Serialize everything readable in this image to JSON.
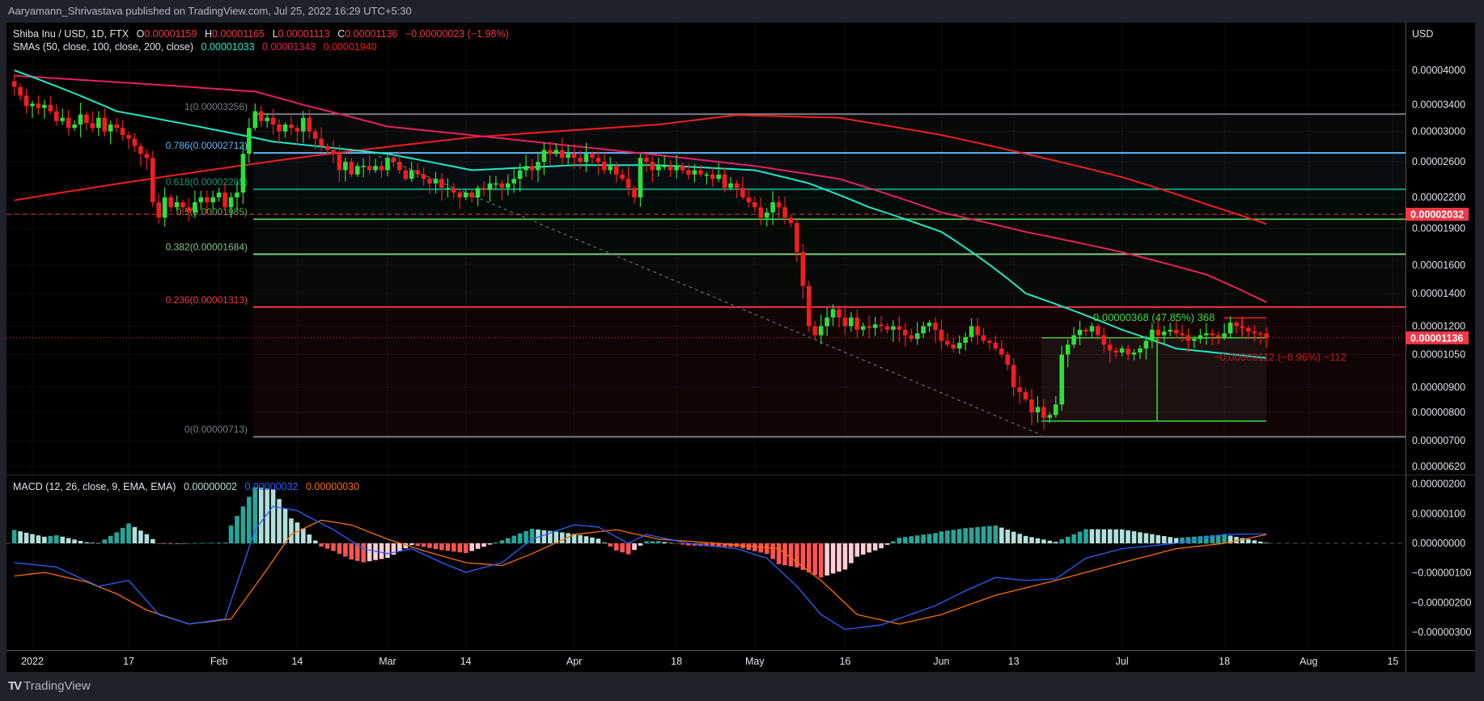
{
  "publish_line": "Aaryamann_Shrivastava published on TradingView.com, Jul 25, 2022 16:29 UTC+5:30",
  "legend": {
    "symbol": "Shiba Inu / USD, 1D, FTX",
    "o_label": "O",
    "o": "0.00001159",
    "h_label": "H",
    "h": "0.00001165",
    "l_label": "L",
    "l": "0.00001113",
    "c_label": "C",
    "c": "0.00001136",
    "change": "−0.00000023 (−1.98%)",
    "sma_label": "SMAs (50, close, 100, close, 200, close)",
    "sma50": "0.00001033",
    "sma100": "0.00001343",
    "sma200": "0.00001940",
    "macd_label": "MACD (12, 26, close, 9, EMA, EMA)",
    "macd_hist": "0.00000002",
    "macd_line": "0.00000032",
    "macd_signal": "0.00000030"
  },
  "logo_text": "TradingView",
  "colors": {
    "up": "#2ee03a",
    "down": "#f21d1d",
    "sma50": "#1de9c6",
    "sma100": "#e91e63",
    "sma200": "#f21d1d",
    "macd": "#2962ff",
    "signal": "#ff6d00",
    "hist_up": "#26a69a",
    "hist_up_fall": "#b2dfdb",
    "hist_dn": "#ff5252",
    "hist_dn_rise": "#ffcdd2",
    "price_label": "#f23645"
  },
  "chart_data": {
    "type": "candlestick",
    "title": "Shiba Inu / USD, 1D, FTX",
    "price_unit": "1e-8 USD",
    "y_scale": "log",
    "start_date": "2021-12-29",
    "closes": [
      3700,
      3550,
      3380,
      3420,
      3350,
      3400,
      3300,
      3150,
      3200,
      3050,
      3100,
      3250,
      3120,
      3050,
      3200,
      3000,
      3100,
      3050,
      2950,
      2900,
      2800,
      2700,
      2650,
      2150,
      2000,
      2200,
      2100,
      2150,
      2100,
      2050,
      2150,
      2200,
      2150,
      2200,
      2250,
      2100,
      2200,
      2250,
      2700,
      3050,
      3300,
      3150,
      3200,
      3100,
      3000,
      3100,
      3050,
      3000,
      3200,
      3000,
      2900,
      2800,
      2750,
      2700,
      2500,
      2600,
      2450,
      2550,
      2550,
      2500,
      2550,
      2500,
      2650,
      2600,
      2500,
      2400,
      2500,
      2450,
      2400,
      2350,
      2400,
      2300,
      2300,
      2250,
      2200,
      2250,
      2200,
      2300,
      2280,
      2350,
      2350,
      2300,
      2350,
      2400,
      2500,
      2550,
      2500,
      2600,
      2750,
      2700,
      2750,
      2650,
      2700,
      2650,
      2600,
      2700,
      2650,
      2600,
      2500,
      2550,
      2450,
      2400,
      2300,
      2200,
      2650,
      2600,
      2500,
      2550,
      2550,
      2500,
      2550,
      2500,
      2450,
      2500,
      2450,
      2450,
      2400,
      2450,
      2300,
      2350,
      2300,
      2200,
      2150,
      2100,
      2000,
      2050,
      2150,
      2100,
      2000,
      1950,
      1700,
      1450,
      1200,
      1150,
      1200,
      1250,
      1300,
      1250,
      1200,
      1250,
      1180,
      1200,
      1190,
      1210,
      1200,
      1180,
      1200,
      1180,
      1150,
      1130,
      1160,
      1200,
      1220,
      1180,
      1120,
      1100,
      1080,
      1110,
      1140,
      1200,
      1150,
      1120,
      1110,
      1080,
      1050,
      1000,
      900,
      880,
      850,
      800,
      820,
      780,
      790,
      830,
      1050,
      1100,
      1150,
      1180,
      1170,
      1200,
      1150,
      1100,
      1070,
      1060,
      1080,
      1050,
      1060,
      1080,
      1120,
      1180,
      1150,
      1170,
      1180,
      1160,
      1150,
      1120,
      1130,
      1150,
      1160,
      1150,
      1140,
      1160,
      1220,
      1200,
      1190,
      1170,
      1160,
      1159,
      1136
    ],
    "sma50": [
      [
        "12-29",
        4000
      ],
      [
        "01-15",
        3300
      ],
      [
        "02-10",
        2860
      ],
      [
        "03-01",
        2700
      ],
      [
        "03-15",
        2500
      ],
      [
        "04-01",
        2560
      ],
      [
        "04-15",
        2560
      ],
      [
        "05-01",
        2500
      ],
      [
        "05-10",
        2350
      ],
      [
        "05-20",
        2100
      ],
      [
        "06-01",
        1870
      ],
      [
        "06-15",
        1400
      ],
      [
        "07-01",
        1180
      ],
      [
        "07-10",
        1080
      ],
      [
        "07-25",
        1033
      ]
    ],
    "sma100": [
      [
        "12-29",
        3900
      ],
      [
        "01-20",
        3750
      ],
      [
        "02-07",
        3620
      ],
      [
        "02-15",
        3400
      ],
      [
        "03-01",
        3070
      ],
      [
        "04-01",
        2800
      ],
      [
        "05-01",
        2550
      ],
      [
        "05-15",
        2400
      ],
      [
        "06-01",
        2050
      ],
      [
        "06-15",
        1870
      ],
      [
        "07-01",
        1700
      ],
      [
        "07-15",
        1530
      ],
      [
        "07-25",
        1343
      ]
    ],
    "sma200": [
      [
        "12-29",
        2170
      ],
      [
        "02-15",
        2660
      ],
      [
        "03-15",
        2920
      ],
      [
        "04-15",
        3100
      ],
      [
        "04-28",
        3240
      ],
      [
        "05-15",
        3200
      ],
      [
        "06-01",
        2950
      ],
      [
        "06-15",
        2700
      ],
      [
        "07-01",
        2420
      ],
      [
        "07-15",
        2130
      ],
      [
        "07-25",
        1940
      ]
    ],
    "macd_unit": "1e-8",
    "macd": [
      [
        "12-29",
        -65
      ],
      [
        "01-05",
        -80
      ],
      [
        "01-12",
        -145
      ],
      [
        "01-17",
        -125
      ],
      [
        "01-22",
        -240
      ],
      [
        "01-27",
        -272
      ],
      [
        "02-02",
        -255
      ],
      [
        "02-07",
        46
      ],
      [
        "02-10",
        125
      ],
      [
        "02-14",
        110
      ],
      [
        "02-20",
        46
      ],
      [
        "02-25",
        -18
      ],
      [
        "03-01",
        -35
      ],
      [
        "03-05",
        -18
      ],
      [
        "03-10",
        -65
      ],
      [
        "03-14",
        -98
      ],
      [
        "03-20",
        -65
      ],
      [
        "03-25",
        14
      ],
      [
        "04-01",
        62
      ],
      [
        "04-05",
        55
      ],
      [
        "04-10",
        0
      ],
      [
        "04-13",
        30
      ],
      [
        "04-20",
        0
      ],
      [
        "04-28",
        -18
      ],
      [
        "05-03",
        -50
      ],
      [
        "05-08",
        -145
      ],
      [
        "05-12",
        -240
      ],
      [
        "05-16",
        -290
      ],
      [
        "05-22",
        -275
      ],
      [
        "05-31",
        -210
      ],
      [
        "06-05",
        -160
      ],
      [
        "06-10",
        -115
      ],
      [
        "06-15",
        -125
      ],
      [
        "06-20",
        -120
      ],
      [
        "06-25",
        -50
      ],
      [
        "07-01",
        -18
      ],
      [
        "07-10",
        0
      ],
      [
        "07-18",
        30
      ],
      [
        "07-25",
        32
      ]
    ],
    "signal": [
      [
        "12-29",
        -110
      ],
      [
        "01-03",
        -98
      ],
      [
        "01-10",
        -130
      ],
      [
        "01-15",
        -170
      ],
      [
        "01-20",
        -225
      ],
      [
        "01-27",
        -272
      ],
      [
        "02-03",
        -255
      ],
      [
        "02-08",
        -115
      ],
      [
        "02-13",
        30
      ],
      [
        "02-18",
        78
      ],
      [
        "02-23",
        62
      ],
      [
        "03-01",
        14
      ],
      [
        "03-07",
        -25
      ],
      [
        "03-14",
        -65
      ],
      [
        "03-20",
        -75
      ],
      [
        "03-25",
        -35
      ],
      [
        "04-01",
        30
      ],
      [
        "04-08",
        46
      ],
      [
        "04-15",
        14
      ],
      [
        "04-25",
        0
      ],
      [
        "05-05",
        -18
      ],
      [
        "05-12",
        -125
      ],
      [
        "05-18",
        -240
      ],
      [
        "05-25",
        -272
      ],
      [
        "06-01",
        -240
      ],
      [
        "06-10",
        -175
      ],
      [
        "06-20",
        -125
      ],
      [
        "07-01",
        -65
      ],
      [
        "07-10",
        -18
      ],
      [
        "07-18",
        0
      ],
      [
        "07-25",
        30
      ]
    ],
    "fib": [
      {
        "level": "1",
        "price": "0.00003256",
        "value": 3256,
        "color": "#787b86"
      },
      {
        "level": "0.786",
        "price": "0.00002712",
        "value": 2712,
        "color": "#64b5f6"
      },
      {
        "level": "0.618",
        "price": "0.00002285",
        "value": 2285,
        "color": "#089981"
      },
      {
        "level": "0.5",
        "price": "0.00001985",
        "value": 1985,
        "color": "#4caf50"
      },
      {
        "level": "0.382",
        "price": "0.00001684",
        "value": 1684,
        "color": "#81c784"
      },
      {
        "level": "0.236",
        "price": "0.00001313",
        "value": 1313,
        "color": "#f23645"
      },
      {
        "level": "0",
        "price": "0.00000713",
        "value": 713,
        "color": "#787b86"
      }
    ],
    "price_lines": [
      {
        "label": "0.00002032",
        "value": 2032,
        "style": "dashed"
      },
      {
        "label": "0.00001136",
        "value": 1136,
        "style": "dotted"
      }
    ],
    "measure_up": {
      "text": "0.00000368 (47.85%) 368",
      "from": 768,
      "to": 1136
    },
    "measure_down": {
      "text": "−0.00000112 (−8.96%) −112"
    },
    "y_axis_title": "USD",
    "y_ticks": [
      {
        "label": "0.00004000",
        "v": 4000
      },
      {
        "label": "0.00003400",
        "v": 3400
      },
      {
        "label": "0.00003000",
        "v": 3000
      },
      {
        "label": "0.00002600",
        "v": 2600
      },
      {
        "label": "0.00002200",
        "v": 2200
      },
      {
        "label": "0.00001900",
        "v": 1900
      },
      {
        "label": "0.00001600",
        "v": 1600
      },
      {
        "label": "0.00001400",
        "v": 1400
      },
      {
        "label": "0.00001200",
        "v": 1200
      },
      {
        "label": "0.00001050",
        "v": 1050
      },
      {
        "label": "0.00000900",
        "v": 900
      },
      {
        "label": "0.00000800",
        "v": 800
      },
      {
        "label": "0.00000700",
        "v": 700
      },
      {
        "label": "0.00000620",
        "v": 620
      }
    ],
    "macd_ticks": [
      {
        "label": "0.00000200",
        "v": 200
      },
      {
        "label": "0.00000100",
        "v": 100
      },
      {
        "label": "0.00000000",
        "v": 0
      },
      {
        "label": "−0.00000100",
        "v": -100
      },
      {
        "label": "−0.00000200",
        "v": -200
      },
      {
        "label": "−0.00000300",
        "v": -300
      }
    ],
    "x_ticks": [
      {
        "label": "2022",
        "d": "01-01"
      },
      {
        "label": "17",
        "d": "01-17"
      },
      {
        "label": "Feb",
        "d": "02-01"
      },
      {
        "label": "14",
        "d": "02-14"
      },
      {
        "label": "Mar",
        "d": "03-01"
      },
      {
        "label": "14",
        "d": "03-14"
      },
      {
        "label": "Apr",
        "d": "04-01"
      },
      {
        "label": "18",
        "d": "04-18"
      },
      {
        "label": "May",
        "d": "05-01"
      },
      {
        "label": "16",
        "d": "05-16"
      },
      {
        "label": "Jun",
        "d": "06-01"
      },
      {
        "label": "13",
        "d": "06-13"
      },
      {
        "label": "Jul",
        "d": "07-01"
      },
      {
        "label": "18",
        "d": "07-18"
      },
      {
        "label": "Aug",
        "d": "08-01"
      },
      {
        "label": "15",
        "d": "08-15"
      }
    ]
  }
}
